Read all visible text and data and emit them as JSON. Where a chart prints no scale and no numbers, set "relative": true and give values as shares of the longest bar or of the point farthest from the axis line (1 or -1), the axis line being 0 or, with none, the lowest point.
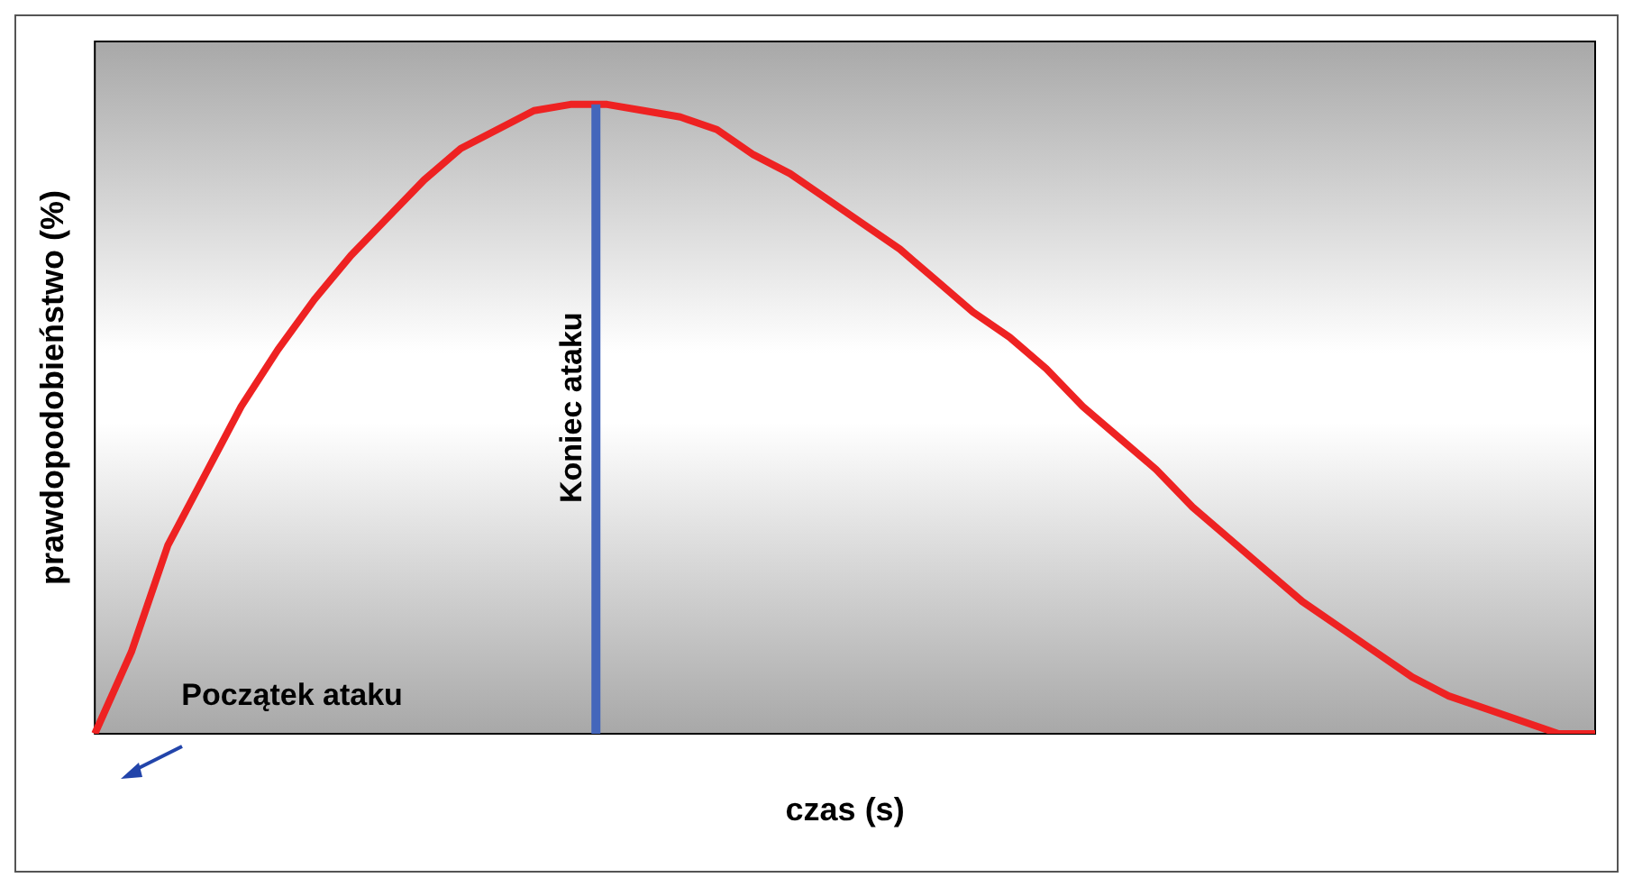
{
  "chart_data": {
    "type": "line",
    "relative": true,
    "xlabel": "czas (s)",
    "ylabel": "prawdopodobieństwo (%)",
    "categories": [
      null,
      null,
      null,
      null,
      null,
      null,
      null,
      null,
      null,
      null,
      null,
      null,
      null,
      null,
      null,
      null,
      null,
      null,
      null,
      null,
      null,
      null,
      null,
      null,
      null,
      null,
      null,
      null,
      null,
      null,
      null,
      null,
      null,
      null,
      null,
      null,
      null,
      null,
      null,
      null,
      null,
      null
    ],
    "series": [
      {
        "color": "#ee2222",
        "values": [
          0,
          0.13,
          0.3,
          0.41,
          0.52,
          0.61,
          0.69,
          0.76,
          0.82,
          0.88,
          0.93,
          0.96,
          0.99,
          1.0,
          1.0,
          0.99,
          0.98,
          0.96,
          0.92,
          0.89,
          0.85,
          0.81,
          0.77,
          0.72,
          0.67,
          0.63,
          0.58,
          0.52,
          0.47,
          0.42,
          0.36,
          0.31,
          0.26,
          0.21,
          0.17,
          0.13,
          0.09,
          0.06,
          0.04,
          0.02,
          0,
          0
        ]
      }
    ],
    "annotations": [
      "Koniec ataku",
      "Początek ataku"
    ],
    "marker": "none",
    "line_style": "solid",
    "grid": false,
    "legend": false
  }
}
